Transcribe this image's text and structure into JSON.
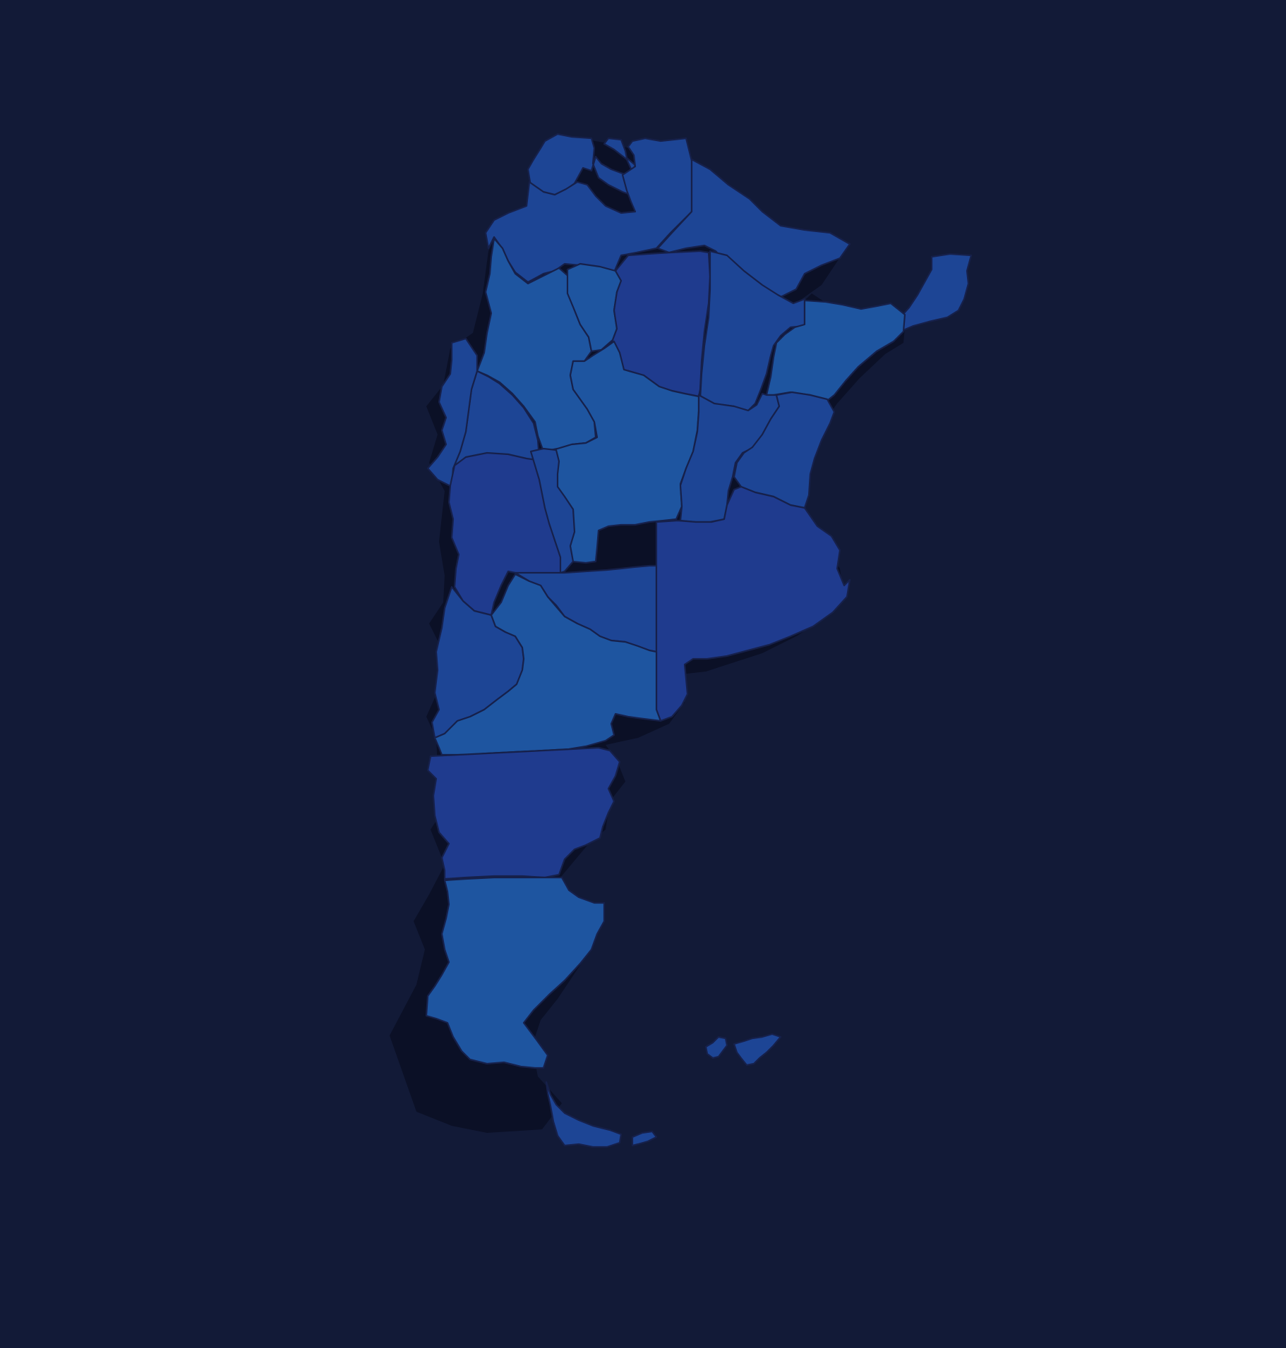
{
  "map": {
    "background": "#121a37",
    "border_color": "#16204a",
    "shadow_color": "#0b1026",
    "fills": {
      "tone_a": "#1d4595",
      "tone_b": "#1e55a0",
      "tone_c": "#1f3b8e"
    },
    "regions": [
      {
        "id": "jujuy",
        "tone": "tone_a"
      },
      {
        "id": "salta",
        "tone": "tone_a"
      },
      {
        "id": "formosa",
        "tone": "tone_a"
      },
      {
        "id": "misiones",
        "tone": "tone_a"
      },
      {
        "id": "catamarca",
        "tone": "tone_b"
      },
      {
        "id": "tucuman",
        "tone": "tone_b"
      },
      {
        "id": "santiago-del-estero",
        "tone": "tone_c"
      },
      {
        "id": "chaco",
        "tone": "tone_a"
      },
      {
        "id": "corrientes",
        "tone": "tone_b"
      },
      {
        "id": "la-rioja",
        "tone": "tone_a"
      },
      {
        "id": "san-juan",
        "tone": "tone_a"
      },
      {
        "id": "cordoba",
        "tone": "tone_b"
      },
      {
        "id": "santa-fe",
        "tone": "tone_a"
      },
      {
        "id": "entre-rios",
        "tone": "tone_a"
      },
      {
        "id": "mendoza",
        "tone": "tone_c"
      },
      {
        "id": "san-luis",
        "tone": "tone_a"
      },
      {
        "id": "la-pampa",
        "tone": "tone_a"
      },
      {
        "id": "buenos-aires",
        "tone": "tone_c"
      },
      {
        "id": "neuquen",
        "tone": "tone_a"
      },
      {
        "id": "rio-negro",
        "tone": "tone_b"
      },
      {
        "id": "chubut",
        "tone": "tone_c"
      },
      {
        "id": "santa-cruz",
        "tone": "tone_b"
      },
      {
        "id": "tierra-del-fuego",
        "tone": "tone_a"
      },
      {
        "id": "islas-malvinas",
        "tone": "tone_a"
      }
    ]
  }
}
